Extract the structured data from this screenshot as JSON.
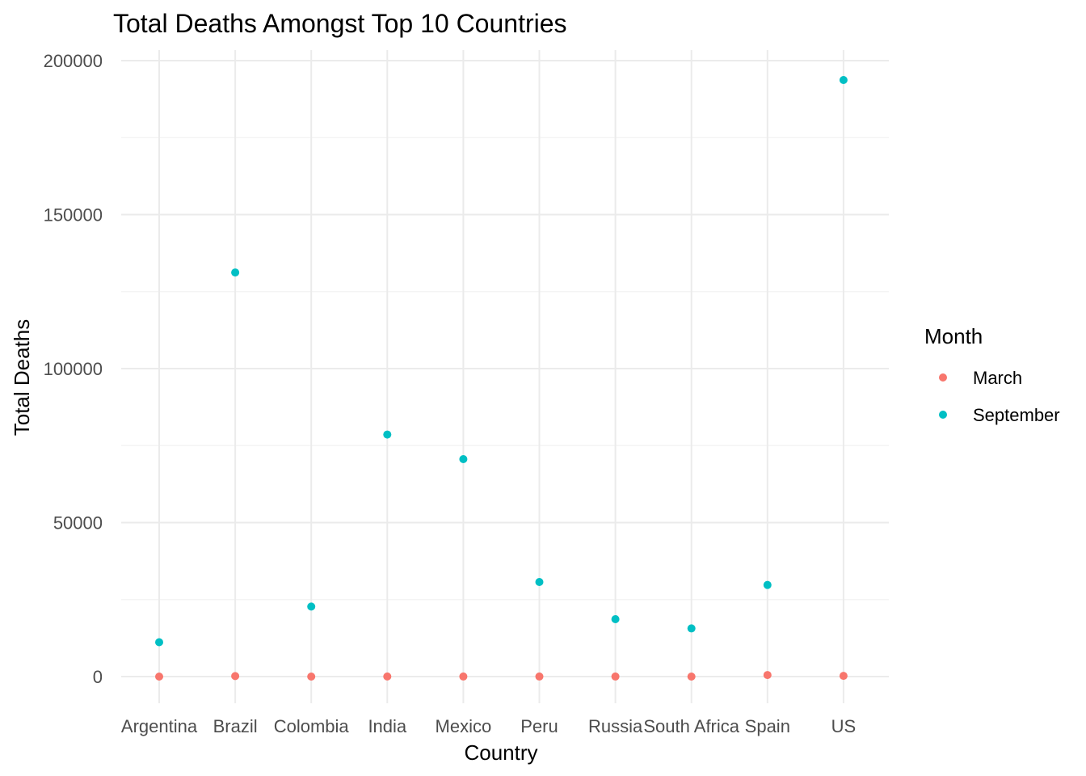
{
  "chart_data": {
    "type": "scatter",
    "title": "Total Deaths Amongst Top 10 Countries",
    "xlabel": "Country",
    "ylabel": "Total Deaths",
    "categories": [
      "Argentina",
      "Brazil",
      "Colombia",
      "India",
      "Mexico",
      "Peru",
      "Russia",
      "South Africa",
      "Spain",
      "US"
    ],
    "ylim": [
      -9000,
      203000
    ],
    "yticks": [
      0,
      50000,
      100000,
      150000,
      200000
    ],
    "ytick_labels": [
      "0",
      "50000",
      "100000",
      "150000",
      "200000"
    ],
    "grid": true,
    "legend": {
      "title": "Month",
      "position": "right"
    },
    "series": [
      {
        "name": "March",
        "color": "#F8766D",
        "values": [
          2,
          159,
          3,
          32,
          20,
          24,
          17,
          0,
          508,
          229
        ]
      },
      {
        "name": "September",
        "color": "#00BFC4",
        "values": [
          11148,
          131210,
          22734,
          78586,
          70604,
          30710,
          18635,
          15641,
          29747,
          193701
        ]
      }
    ]
  }
}
